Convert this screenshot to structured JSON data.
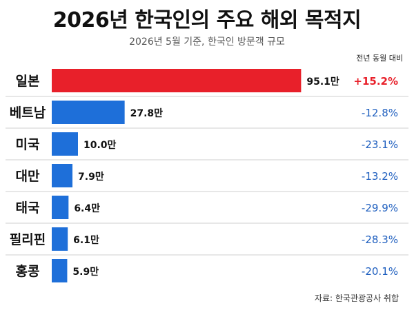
{
  "title": "2026년 한국인의 주요 해외 목적지",
  "subtitle": "2026년 5월 기준, 한국인 방문객 규모",
  "change_header": "전년 동월 대비",
  "source": "자료: 한국관광공사 취합",
  "colors": {
    "highlight_bar": "#e8202a",
    "bar": "#1e6fd9",
    "positive_change": "#e8202a",
    "negative_change": "#1f5fbf",
    "divider": "#cfcfcf"
  },
  "chart_data": {
    "type": "bar",
    "orientation": "horizontal",
    "categories": [
      "일본",
      "베트남",
      "미국",
      "대만",
      "태국",
      "필리핀",
      "홍콩"
    ],
    "values": [
      95.1,
      27.8,
      10.0,
      7.9,
      6.4,
      6.1,
      5.9
    ],
    "value_labels": [
      "95.1만",
      "27.8만",
      "10.0만",
      "7.9만",
      "6.4만",
      "6.1만",
      "5.9만"
    ],
    "change_labels": [
      "+15.2%",
      "-12.8%",
      "-23.1%",
      "-13.2%",
      "-29.9%",
      "-28.3%",
      "-20.1%"
    ],
    "changes": [
      15.2,
      -12.8,
      -23.1,
      -13.2,
      -29.9,
      -28.3,
      -20.1
    ],
    "xlim": [
      0,
      100
    ],
    "grid": false,
    "legend": "none"
  }
}
